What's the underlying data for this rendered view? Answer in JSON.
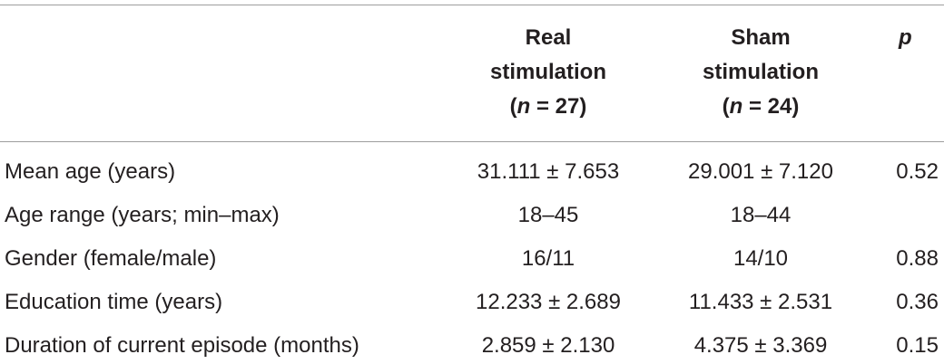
{
  "table": {
    "header": [
      {
        "line1": "Real",
        "line2": "stimulation",
        "n_open": "(",
        "n_symbol": "n",
        "n_rest": "= 27)"
      },
      {
        "line1": "Sham",
        "line2": "stimulation",
        "n_open": "(",
        "n_symbol": "n",
        "n_rest": "= 24)"
      },
      {
        "symbol": "p"
      }
    ],
    "rows": [
      [
        "Mean age (years)",
        "31.111 ± 7.653",
        "29.001 ± 7.120",
        "0.52"
      ],
      [
        "Age range (years; min–max)",
        "18–45",
        "18–44",
        null
      ],
      [
        "Gender (female/male)",
        "16/11",
        "14/10",
        "0.88"
      ],
      [
        "Education time (years)",
        "12.233 ± 2.689",
        "11.433 ± 2.531",
        "0.36"
      ],
      [
        "Duration of current episode (months)",
        "2.859 ± 2.130",
        "4.375 ± 3.369",
        "0.15"
      ]
    ]
  }
}
